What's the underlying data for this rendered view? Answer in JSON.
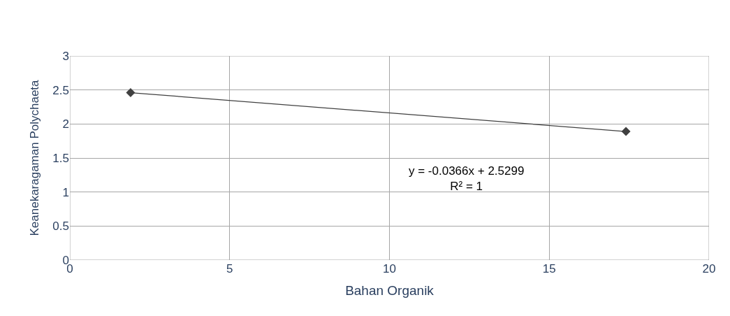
{
  "chart_data": {
    "type": "line",
    "marker": "diamond",
    "xlabel": "Bahan Organik",
    "ylabel": "Keanekaragaman Polychaeta",
    "xlim": [
      0,
      20
    ],
    "xticks": [
      0,
      5,
      10,
      15,
      20
    ],
    "ylim": [
      0,
      3
    ],
    "yticks": [
      0,
      0.5,
      1,
      1.5,
      2,
      2.5,
      3
    ],
    "grid": true,
    "series": [
      {
        "color": "#404040",
        "x": [
          1.9,
          17.4
        ],
        "values": [
          2.46,
          1.89
        ]
      }
    ],
    "annotations": [
      "y = -0.0366x + 2.5299\nR² = 1"
    ]
  }
}
